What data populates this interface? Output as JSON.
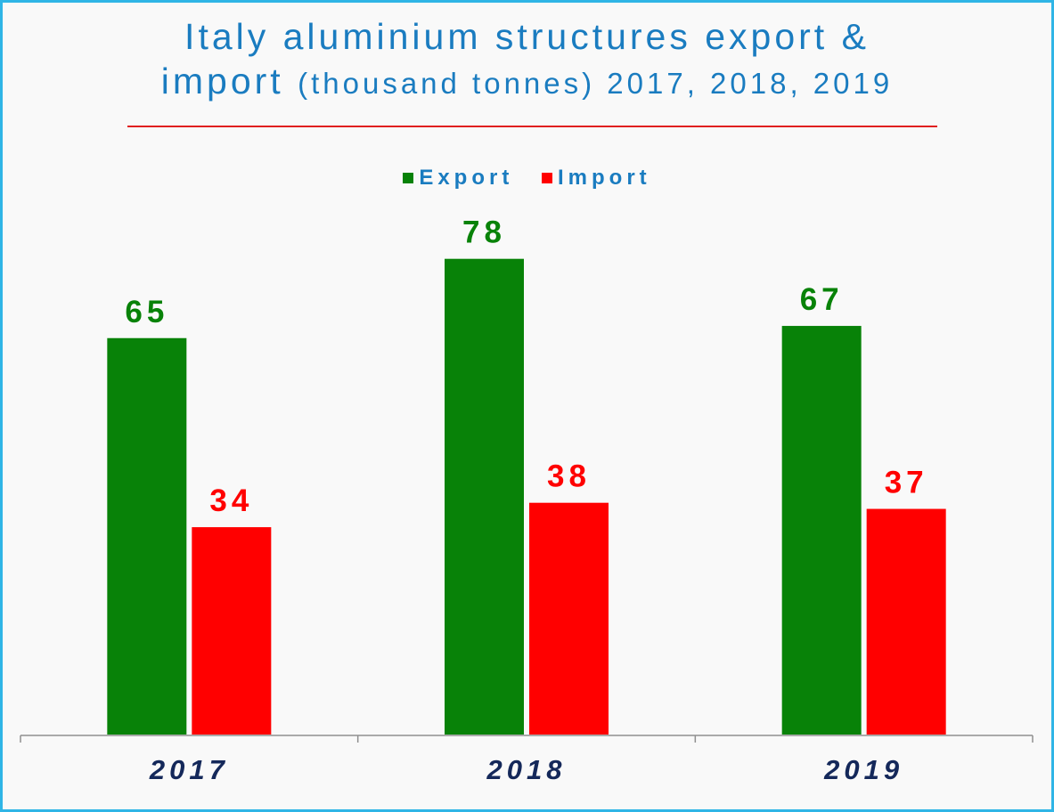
{
  "title": {
    "main": "Italy aluminium structures export &",
    "line2_main": "import",
    "line2_sub": "(thousand tonnes) 2017, 2018, 2019"
  },
  "colors": {
    "export": "#088208",
    "import": "#ff0000",
    "axis_labels": "#14285a",
    "title": "#1a7cc0"
  },
  "chart_data": {
    "type": "bar",
    "title": "Italy aluminium structures export & import (thousand tonnes) 2017, 2018, 2019",
    "categories": [
      "2017",
      "2018",
      "2019"
    ],
    "series": [
      {
        "name": "Export",
        "values": [
          65,
          78,
          67
        ]
      },
      {
        "name": "Import",
        "values": [
          34,
          38,
          37
        ]
      }
    ],
    "xlabel": "",
    "ylabel": "",
    "ylim": [
      0,
      80
    ],
    "grid": false,
    "legend": "top-center"
  }
}
